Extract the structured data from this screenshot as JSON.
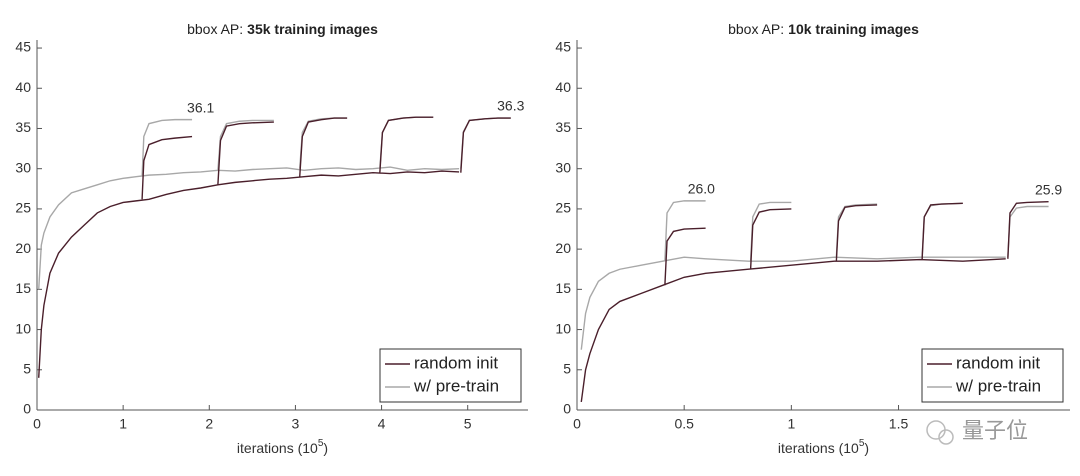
{
  "chart_data": [
    {
      "type": "line",
      "title": "bbox AP:",
      "title_emphasis": "35k training images",
      "xlabel": "iterations (10",
      "xlabel_superscript": "5",
      "xlabel_suffix": ")",
      "xlim": [
        0,
        5.7
      ],
      "xticks": [
        0,
        1,
        2,
        3,
        4,
        5
      ],
      "ylim": [
        0,
        46
      ],
      "yticks": [
        0,
        5,
        10,
        15,
        20,
        25,
        30,
        35,
        40,
        45
      ],
      "grid": false,
      "legend": "lower right",
      "x": [
        0.02,
        0.05,
        0.08,
        0.15,
        0.25,
        0.4,
        0.55,
        0.7,
        0.85,
        1.0,
        1.15,
        1.3,
        1.5,
        1.7,
        1.9,
        2.1,
        2.3,
        2.5,
        2.7,
        2.9,
        3.1,
        3.3,
        3.5,
        3.7,
        3.9,
        4.1,
        4.3,
        4.5,
        4.7,
        4.9,
        1.22,
        1.22,
        1.24,
        1.3,
        1.45,
        1.6,
        1.8,
        2.1,
        2.1,
        2.13,
        2.2,
        2.35,
        2.5,
        2.75,
        3.05,
        3.05,
        3.08,
        3.15,
        3.3,
        3.45,
        3.6,
        3.98,
        3.98,
        4.01,
        4.08,
        4.25,
        4.4,
        4.6,
        4.92,
        4.92,
        4.95,
        5.02,
        5.2,
        5.35,
        5.5
      ],
      "series": [
        {
          "name": "random init",
          "color": "#4a1f2b",
          "values": [
            4,
            10,
            13,
            17,
            19.5,
            21.5,
            23,
            24.5,
            25.3,
            25.8,
            26,
            26.2,
            26.8,
            27.3,
            27.6,
            28,
            28.3,
            28.5,
            28.7,
            28.8,
            29,
            29.2,
            29.1,
            29.3,
            29.5,
            29.4,
            29.6,
            29.5,
            29.7,
            29.6,
            null,
            26.2,
            31,
            33,
            33.6,
            33.8,
            34,
            null,
            28,
            33.5,
            35.3,
            35.6,
            35.7,
            35.8,
            null,
            29,
            34,
            35.8,
            36.1,
            36.3,
            36.3,
            null,
            29.5,
            34.5,
            36,
            36.3,
            36.4,
            36.4,
            null,
            29.5,
            34.5,
            36,
            36.2,
            36.3,
            36.3
          ]
        },
        {
          "name": "w/ pre-train",
          "color": "#a8a8a8",
          "values": [
            15,
            20.5,
            22,
            24,
            25.5,
            27,
            27.5,
            28,
            28.5,
            28.8,
            29,
            29.2,
            29.3,
            29.5,
            29.6,
            29.8,
            29.7,
            29.9,
            30,
            30.1,
            29.8,
            30,
            30.1,
            29.9,
            30,
            30.2,
            29.8,
            30,
            29.9,
            30,
            null,
            29,
            34,
            35.6,
            36,
            36.1,
            36.1,
            null,
            29.8,
            34,
            35.6,
            35.9,
            36,
            36,
            null,
            30,
            34.5,
            35.9,
            36.2,
            36.3,
            36.3,
            null,
            30,
            34.5,
            36,
            36.3,
            36.4,
            36.4,
            null,
            30,
            34.6,
            36,
            36.2,
            36.3,
            36.3
          ]
        }
      ],
      "annotations": [
        {
          "x": 1.9,
          "value": 36.1
        },
        {
          "x": 5.5,
          "value": 36.3
        }
      ]
    },
    {
      "type": "line",
      "title": "bbox AP:",
      "title_emphasis": "10k training images",
      "xlabel": "iterations (10",
      "xlabel_superscript": "5",
      "xlabel_suffix": ")",
      "xlim": [
        0,
        2.3
      ],
      "xticks": [
        0,
        0.5,
        1,
        1.5
      ],
      "ylim": [
        0,
        46
      ],
      "yticks": [
        0,
        5,
        10,
        15,
        20,
        25,
        30,
        35,
        40,
        45
      ],
      "grid": false,
      "legend": "lower right",
      "x": [
        0.02,
        0.04,
        0.06,
        0.1,
        0.15,
        0.2,
        0.3,
        0.4,
        0.5,
        0.6,
        0.8,
        1.0,
        1.2,
        1.4,
        1.6,
        1.8,
        2.0,
        0.41,
        0.41,
        0.42,
        0.45,
        0.5,
        0.6,
        0.81,
        0.81,
        0.82,
        0.85,
        0.9,
        1.0,
        1.21,
        1.21,
        1.22,
        1.25,
        1.3,
        1.4,
        1.61,
        1.61,
        1.62,
        1.65,
        1.7,
        1.8,
        2.01,
        2.01,
        2.02,
        2.05,
        2.1,
        2.2
      ],
      "series": [
        {
          "name": "random init",
          "color": "#4a1f2b",
          "values": [
            1,
            5,
            7,
            10,
            12.5,
            13.5,
            14.5,
            15.5,
            16.5,
            17,
            17.5,
            18,
            18.5,
            18.5,
            18.7,
            18.5,
            18.8,
            null,
            15.5,
            21,
            22.2,
            22.5,
            22.6,
            null,
            17.5,
            23,
            24.6,
            24.9,
            25,
            null,
            18.5,
            23.5,
            25.2,
            25.4,
            25.5,
            null,
            18.7,
            24,
            25.5,
            25.6,
            25.7,
            null,
            18.8,
            24.5,
            25.7,
            25.8,
            25.9
          ]
        },
        {
          "name": "w/ pre-train",
          "color": "#a8a8a8",
          "values": [
            7.5,
            12,
            14,
            16,
            17,
            17.5,
            18,
            18.5,
            19,
            18.8,
            18.5,
            18.5,
            19,
            18.8,
            19,
            19,
            19,
            null,
            18.5,
            24.5,
            25.8,
            26,
            26,
            null,
            18.5,
            24,
            25.6,
            25.8,
            25.8,
            null,
            19,
            24,
            25.3,
            25.5,
            25.6,
            null,
            19,
            24,
            25.4,
            25.6,
            25.7,
            null,
            19,
            24,
            25.1,
            25.3,
            25.3
          ]
        }
      ],
      "annotations": [
        {
          "x": 0.58,
          "value": 26,
          "label": "26.0"
        },
        {
          "x": 2.2,
          "value": 25.9
        }
      ]
    }
  ],
  "watermark": "量子位"
}
